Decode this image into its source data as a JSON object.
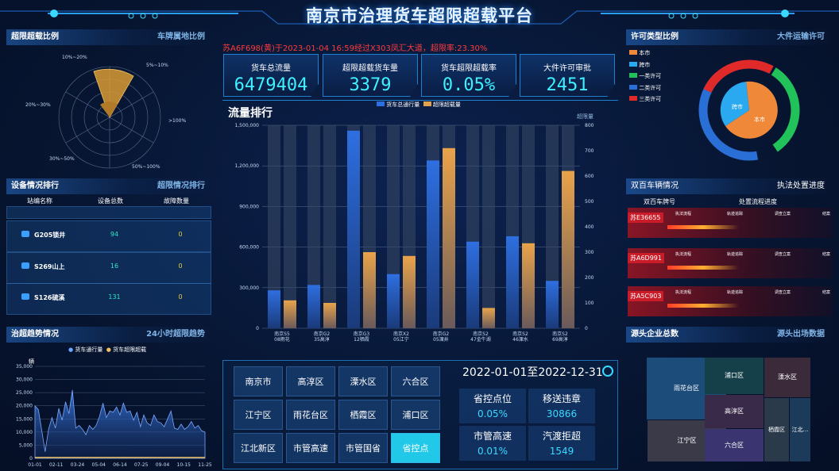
{
  "header": {
    "title": "南京市治理货车超限超载平台"
  },
  "alert": {
    "text": "苏A6F698(黄)于2023-01-04 16:59经过X303凤汇大道，超限率:23.30%"
  },
  "left": {
    "ratio_panel": {
      "title": "超限超载比例",
      "subtitle": "车牌属地比例",
      "labels": [
        "10%~20%",
        "5%~10%",
        "20%~30%",
        ">100%",
        "30%~50%",
        "50%~100%"
      ]
    },
    "device_panel": {
      "title": "设备情况排行",
      "subtitle": "超限情况排行",
      "columns": [
        "站编名称",
        "设备总数",
        "故障数量"
      ],
      "rows": [
        {
          "name": "G205锁井",
          "total": "94",
          "faults": "0"
        },
        {
          "name": "S269山上",
          "total": "16",
          "faults": "0"
        },
        {
          "name": "S126硫溪",
          "total": "131",
          "faults": "0"
        }
      ]
    },
    "trend_panel": {
      "title": "治超趋势情况",
      "subtitle": "24小时超限趋势",
      "legend": [
        "货车通行量",
        "货车超限超载"
      ],
      "y_unit": "辆",
      "yticks": [
        "35,000",
        "30,000",
        "25,000",
        "20,000",
        "15,000",
        "10,000",
        "5,000",
        "0"
      ],
      "xticks": [
        "01-01",
        "02-11",
        "03-24",
        "05-04",
        "06-14",
        "07-25",
        "09-04",
        "10-15",
        "11-25"
      ]
    }
  },
  "kpis": [
    {
      "label": "货车总流量",
      "value": "6479404"
    },
    {
      "label": "超限超载货车量",
      "value": "3379"
    },
    {
      "label": "货车超限超载率",
      "value": "0.05%"
    },
    {
      "label": "大件许可审批",
      "value": "2451"
    }
  ],
  "flow": {
    "title": "流量排行",
    "unit_right": "超限量",
    "legend": [
      "货车总通行量",
      "超限超载量"
    ]
  },
  "chart_data": {
    "type": "bar",
    "categories": [
      "南京S5 08雨花",
      "南京G2 35高淳",
      "南京G3 12栖霞",
      "南京X2 05江宁",
      "南京G2 05溧井",
      "南京S2 47金牛湖",
      "南京S2 46溧水",
      "南京S2 69高淳"
    ],
    "series": [
      {
        "name": "货车总通行量",
        "axis": "left",
        "values": [
          280000,
          320000,
          1460000,
          400000,
          1240000,
          640000,
          680000,
          350000
        ],
        "color": "#2e6fe0"
      },
      {
        "name": "超限超载量",
        "axis": "right",
        "values": [
          110,
          100,
          300,
          285,
          710,
          80,
          335,
          620
        ],
        "color": "#e0a24a"
      }
    ],
    "yticks_left": [
      "0",
      "300,000",
      "600,000",
      "900,000",
      "1,200,000",
      "1,500,000"
    ],
    "yticks_right": [
      "0",
      "100",
      "200",
      "300",
      "400",
      "500",
      "600",
      "700",
      "800"
    ],
    "ylim_left": [
      0,
      1500000
    ],
    "ylim_right": [
      0,
      800
    ]
  },
  "district": {
    "cells": [
      "南京市",
      "高淳区",
      "溧水区",
      "六合区",
      "江宁区",
      "雨花台区",
      "栖霞区",
      "浦口区",
      "江北新区",
      "市管高速",
      "市管国省",
      "省控点"
    ],
    "active": "省控点",
    "date_range": "2022-01-01至2022-12-31",
    "stats": [
      {
        "label": "省控点位",
        "value": "0.05%"
      },
      {
        "label": "移送违章",
        "value": "30866"
      },
      {
        "label": "市管高速",
        "value": "0.01%"
      },
      {
        "label": "汽渡拒超",
        "value": "1549"
      }
    ]
  },
  "right": {
    "permit_panel": {
      "title": "许可类型比例",
      "subtitle": "大件运输许可",
      "legend": [
        {
          "name": "本市",
          "color": "#f0883a"
        },
        {
          "name": "跨市",
          "color": "#2aa8f0"
        },
        {
          "name": "一类许可",
          "color": "#22c25a"
        },
        {
          "name": "二类许可",
          "color": "#2a6fd6"
        },
        {
          "name": "三类许可",
          "color": "#e02a2a"
        }
      ],
      "inner_labels": [
        "跨市",
        "本市"
      ]
    },
    "hundred_panel": {
      "title": "双百车辆情况",
      "subtitle": "执法处置进度",
      "columns": [
        "双百车牌号",
        "处置流程进度"
      ],
      "rows": [
        {
          "plate": "苏E36655",
          "steps": [
            "执法流程",
            "轨迹追踪",
            "调查立案",
            "结案"
          ]
        },
        {
          "plate": "苏A6D991",
          "steps": [
            "执法流程",
            "轨迹追踪",
            "调查立案",
            "结案"
          ]
        },
        {
          "plate": "苏A5C903",
          "steps": [
            "执法流程",
            "轨迹追踪",
            "调查立案",
            "结案"
          ]
        }
      ]
    },
    "source_panel": {
      "title": "源头企业总数",
      "subtitle": "源头出场数据",
      "cells": [
        "雨花台区",
        "浦口区",
        "溧水区",
        "高淳区",
        "江宁区",
        "六合区",
        "栖霞区",
        "江北..."
      ]
    }
  }
}
